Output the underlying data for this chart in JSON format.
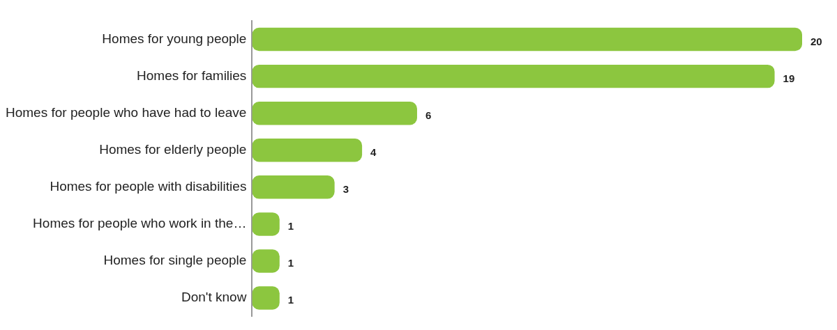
{
  "chart_data": {
    "type": "bar",
    "orientation": "horizontal",
    "categories": [
      "Homes for young people",
      "Homes for families",
      "Homes for people who have had to leave",
      "Homes for elderly people",
      "Homes for people with disabilities",
      "Homes for people who work in the…",
      "Homes for single people",
      "Don't know"
    ],
    "values": [
      20,
      19,
      6,
      4,
      3,
      1,
      1,
      1
    ],
    "color": "#8cc63f",
    "data_labels": true
  }
}
